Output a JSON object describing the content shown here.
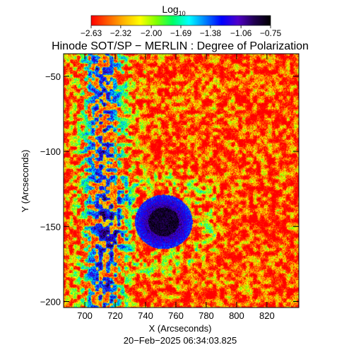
{
  "chart_data": {
    "type": "heatmap",
    "title": "Hinode SOT/SP − MERLIN : Degree of Polarization",
    "xlabel": "X (Arcseconds)",
    "ylabel": "Y (Arcseconds)",
    "timestamp": "20−Feb−2025 06:34:03.825",
    "xlim": [
      686,
      841
    ],
    "ylim": [
      -204,
      -35
    ],
    "x_ticks": [
      {
        "value": 700,
        "label": "700"
      },
      {
        "value": 720,
        "label": "720"
      },
      {
        "value": 740,
        "label": "740"
      },
      {
        "value": 760,
        "label": "760"
      },
      {
        "value": 780,
        "label": "780"
      },
      {
        "value": 800,
        "label": "800"
      },
      {
        "value": 820,
        "label": "820"
      }
    ],
    "y_ticks": [
      {
        "value": -50,
        "label": "−50"
      },
      {
        "value": -100,
        "label": "−100"
      },
      {
        "value": -150,
        "label": "−150"
      },
      {
        "value": -200,
        "label": "−200"
      }
    ],
    "colorbar": {
      "title_main": "Log",
      "title_sub": "10",
      "min": -2.63,
      "max": -0.75,
      "ticks": [
        {
          "value": -2.63,
          "label": "−2.63"
        },
        {
          "value": -2.32,
          "label": "−2.32"
        },
        {
          "value": -2.0,
          "label": "−2.00"
        },
        {
          "value": -1.69,
          "label": "−1.69"
        },
        {
          "value": -1.38,
          "label": "−1.38"
        },
        {
          "value": -1.06,
          "label": "−1.06"
        },
        {
          "value": -0.75,
          "label": "−0.75"
        }
      ],
      "colors": [
        "#ff0000",
        "#ff5a00",
        "#ffb400",
        "#ffff00",
        "#80ff00",
        "#00ff64",
        "#00ffff",
        "#0080ff",
        "#0000ff",
        "#5000c8",
        "#200050",
        "#000000"
      ]
    },
    "features": {
      "background_value": -2.5,
      "sunspot": {
        "center": [
          752,
          -147
        ],
        "core_radius": 10,
        "penumbra_radius": 19,
        "core_value": -0.85,
        "penumbra_value": -1.3
      },
      "plage_network_value": -1.65
    }
  }
}
